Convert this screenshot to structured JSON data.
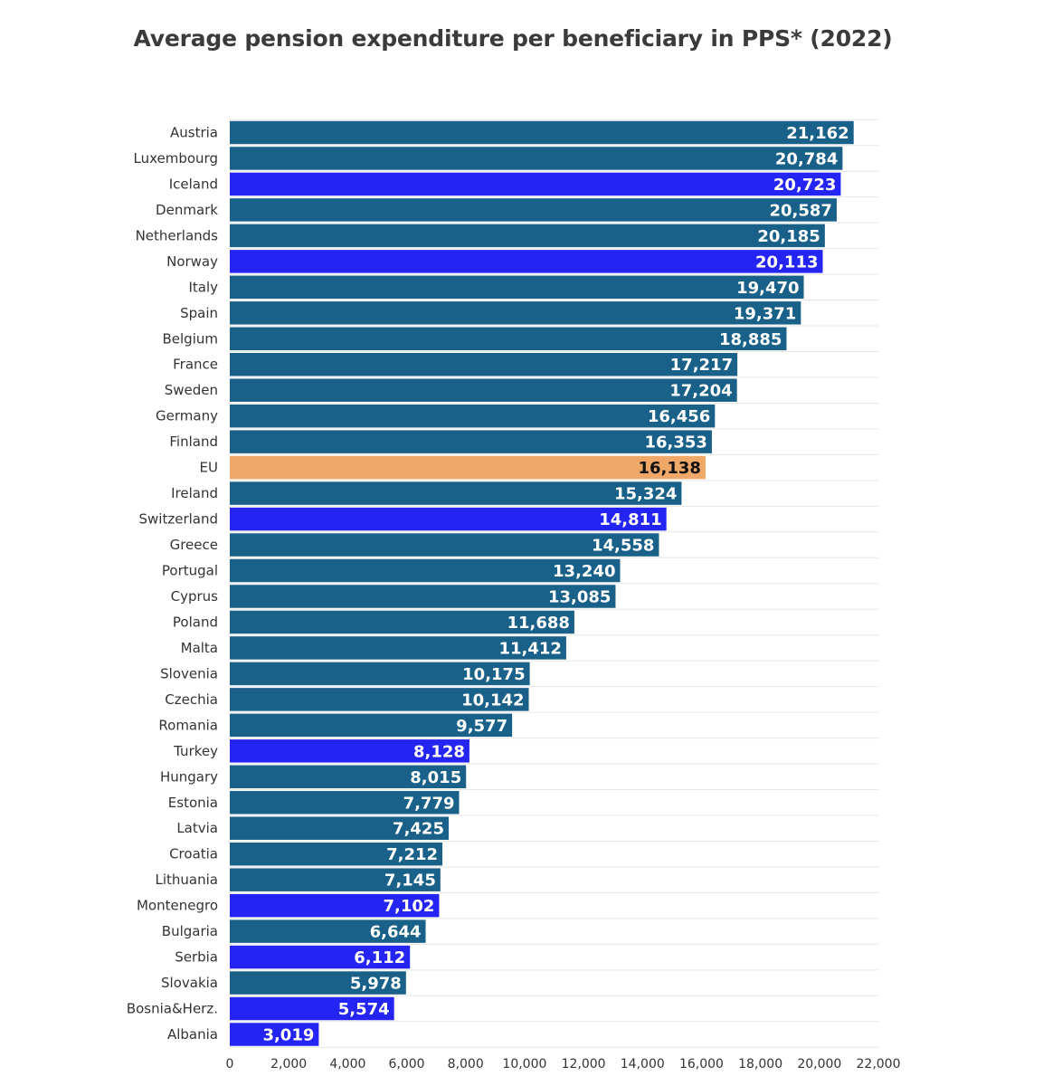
{
  "chart_data": {
    "type": "bar",
    "orientation": "horizontal",
    "title": "Average pension expenditure per beneficiary in PPS* (2022)",
    "xlabel": "",
    "ylabel": "",
    "xlim": [
      0,
      22000
    ],
    "x_ticks": [
      0,
      2000,
      4000,
      6000,
      8000,
      10000,
      12000,
      14000,
      16000,
      18000,
      20000,
      22000
    ],
    "x_tick_labels": [
      "0",
      "2,000",
      "4,000",
      "6,000",
      "8,000",
      "10,000",
      "12,000",
      "14,000",
      "16,000",
      "18,000",
      "20,000",
      "22,000"
    ],
    "grid": true,
    "legend": "none",
    "colors": {
      "eu_member": "#1a6189",
      "non_eu": "#2424f5",
      "eu_average": "#f0a868",
      "value_text_light": "#ffffff",
      "value_text_dark": "#111111"
    },
    "categories": [
      "Austria",
      "Luxembourg",
      "Iceland",
      "Denmark",
      "Netherlands",
      "Norway",
      "Italy",
      "Spain",
      "Belgium",
      "France",
      "Sweden",
      "Germany",
      "Finland",
      "EU",
      "Ireland",
      "Switzerland",
      "Greece",
      "Portugal",
      "Cyprus",
      "Poland",
      "Malta",
      "Slovenia",
      "Czechia",
      "Romania",
      "Turkey",
      "Hungary",
      "Estonia",
      "Latvia",
      "Croatia",
      "Lithuania",
      "Montenegro",
      "Bulgaria",
      "Serbia",
      "Slovakia",
      "Bosnia&Herz.",
      "Albania"
    ],
    "values": [
      21162,
      20784,
      20723,
      20587,
      20185,
      20113,
      19470,
      19371,
      18885,
      17217,
      17204,
      16456,
      16353,
      16138,
      15324,
      14811,
      14558,
      13240,
      13085,
      11688,
      11412,
      10175,
      10142,
      9577,
      8128,
      8015,
      7779,
      7425,
      7212,
      7145,
      7102,
      6644,
      6112,
      5978,
      5574,
      3019
    ],
    "value_labels": [
      "21,162",
      "20,784",
      "20,723",
      "20,587",
      "20,185",
      "20,113",
      "19,470",
      "19,371",
      "18,885",
      "17,217",
      "17,204",
      "16,456",
      "16,353",
      "16,138",
      "15,324",
      "14,811",
      "14,558",
      "13,240",
      "13,085",
      "11,688",
      "11,412",
      "10,175",
      "10,142",
      "9,577",
      "8,128",
      "8,015",
      "7,779",
      "7,425",
      "7,212",
      "7,145",
      "7,102",
      "6,644",
      "6,112",
      "5,978",
      "5,574",
      "3,019"
    ],
    "groups": [
      "eu_member",
      "eu_member",
      "non_eu",
      "eu_member",
      "eu_member",
      "non_eu",
      "eu_member",
      "eu_member",
      "eu_member",
      "eu_member",
      "eu_member",
      "eu_member",
      "eu_member",
      "eu_average",
      "eu_member",
      "non_eu",
      "eu_member",
      "eu_member",
      "eu_member",
      "eu_member",
      "eu_member",
      "eu_member",
      "eu_member",
      "eu_member",
      "non_eu",
      "eu_member",
      "eu_member",
      "eu_member",
      "eu_member",
      "eu_member",
      "non_eu",
      "eu_member",
      "non_eu",
      "eu_member",
      "non_eu",
      "non_eu"
    ]
  }
}
